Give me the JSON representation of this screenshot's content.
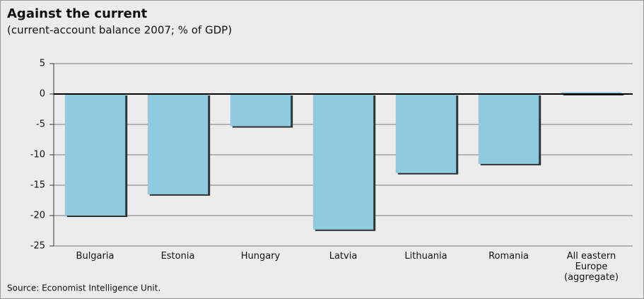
{
  "chart_data": {
    "type": "bar",
    "title": "Against the current",
    "subtitle": "(current-account balance 2007; % of GDP)",
    "source": "Source: Economist Intelligence Unit.",
    "categories": [
      "Bulgaria",
      "Estonia",
      "Hungary",
      "Latvia",
      "Lithuania",
      "Romania",
      "All eastern\nEurope\n(aggregate)"
    ],
    "values": [
      -20,
      -16.5,
      -5.3,
      -22.3,
      -13,
      -11.5,
      0.3
    ],
    "color": "#8ecae0",
    "ylim": [
      -25,
      5
    ],
    "yticks": [
      5,
      0,
      -5,
      -10,
      -15,
      -20,
      -25
    ],
    "grid": true
  }
}
